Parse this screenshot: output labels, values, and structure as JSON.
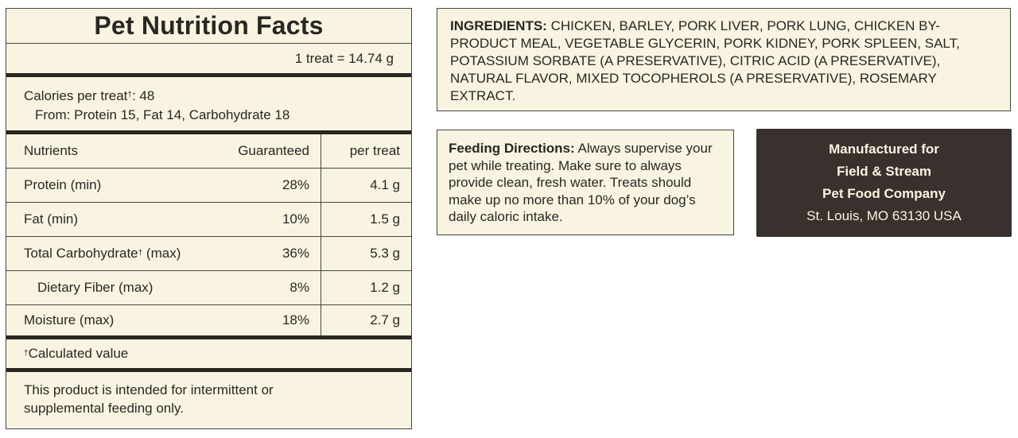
{
  "nutrition": {
    "title": "Pet Nutrition Facts",
    "serving": "1 treat = 14.74 g",
    "calories_label": "Calories per treat",
    "calories_mark": "†",
    "calories_value": ": 48",
    "calories_from": "From: Protein 15, Fat 14, Carbohydrate 18",
    "headers": {
      "name": "Nutrients",
      "guaranteed": "Guaranteed",
      "per_treat": "per treat"
    },
    "rows": [
      {
        "name": "Protein (min)",
        "mark": "",
        "name_suffix": "",
        "guaranteed": "28%",
        "per_treat": "4.1 g"
      },
      {
        "name": "Fat (min)",
        "mark": "",
        "name_suffix": "",
        "guaranteed": "10%",
        "per_treat": "1.5 g"
      },
      {
        "name": "Total Carbohydrate",
        "mark": "†",
        "name_suffix": " (max)",
        "guaranteed": "36%",
        "per_treat": "5.3 g"
      },
      {
        "name": "Dietary Fiber (max)",
        "mark": "",
        "name_suffix": "",
        "guaranteed": "8%",
        "per_treat": "1.2 g"
      },
      {
        "name": "Moisture (max)",
        "mark": "",
        "name_suffix": "",
        "guaranteed": "18%",
        "per_treat": "2.7 g"
      }
    ],
    "footnote_mark": "†",
    "footnote": "Calculated value",
    "disclaimer_line1": "This product is intended for intermittent or",
    "disclaimer_line2": "supplemental feeding only."
  },
  "ingredients": {
    "label": "Ingredients:",
    "text": "Chicken, Barley, Pork Liver, Pork Lung, Chicken By-Product Meal, Vegetable Glycerin, Pork Kidney, Pork Spleen, Salt, Potassium Sorbate (A Preservative), Citric Acid (A Preservative), Natural Flavor, Mixed Tocopherols (A Preservative), Rosemary Extract."
  },
  "feeding": {
    "label": "Feeding Directions:",
    "text": "Always supervise your pet while treating. Make sure to always provide clean, fresh water. Treats should make up no more than 10% of your dog’s daily caloric intake."
  },
  "manufacturer": {
    "line1": "Manufactured for",
    "line2": "Field & Stream",
    "line3": "Pet Food Company",
    "line4": "St. Louis, MO 63130 USA"
  },
  "colors": {
    "panel_background": "#f8f4e1",
    "border": "#4a4440",
    "text": "#2b2623",
    "manufacturer_background": "#38312d"
  }
}
